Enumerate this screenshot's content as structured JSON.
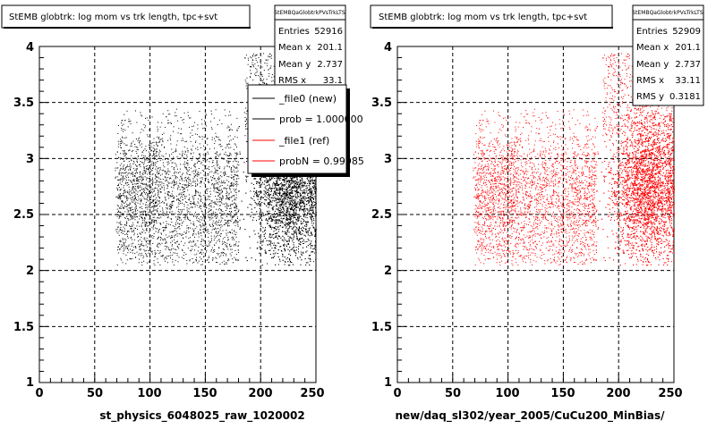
{
  "chart_data": [
    {
      "type": "scatter",
      "title": "StEMB globtrk: log mom vs trk length, tpc+svt",
      "xlabel": "st_physics_6048025_raw_1020002",
      "xlim": [
        0,
        250
      ],
      "ylim": [
        1,
        4
      ],
      "x_ticks": [
        "0",
        "50",
        "100",
        "150",
        "200",
        "250"
      ],
      "y_ticks": [
        "1",
        "1.5",
        "2",
        "2.5",
        "3",
        "3.5",
        "4"
      ],
      "grid": true,
      "color": "#000000",
      "distribution": {
        "diffuse": {
          "x_range": [
            70,
            180
          ],
          "y_range": [
            2.05,
            3.45
          ],
          "dense_center": [
            100,
            2.65
          ]
        },
        "core": {
          "x_range": [
            178,
            250
          ],
          "y_range": [
            2.05,
            3.9
          ],
          "dense_center": [
            225,
            2.75
          ]
        }
      },
      "stats": {
        "name": "StEMBQaGlobtrkPVsTrkLTS",
        "rows": [
          {
            "label": "Entries",
            "value": "52916"
          },
          {
            "label": "Mean x",
            "value": "201.1"
          },
          {
            "label": "Mean y",
            "value": "2.737"
          },
          {
            "label": "RMS x",
            "value": "33.1"
          }
        ]
      },
      "legend": {
        "position": "top-right",
        "entries": [
          {
            "label": "_file0 (new)",
            "color": "#000000"
          },
          {
            "label": "prob = 1.000000",
            "color": "#000000"
          },
          {
            "label": "_file1 (ref)",
            "color": "#ff0000"
          },
          {
            "label": "probN = 0.99985",
            "color": "#ff0000"
          }
        ]
      }
    },
    {
      "type": "scatter",
      "title": "StEMB globtrk: log mom vs trk length, tpc+svt",
      "xlabel": "new/daq_sl302/year_2005/CuCu200_MinBias/",
      "xlim": [
        0,
        250
      ],
      "ylim": [
        1,
        4
      ],
      "x_ticks": [
        "0",
        "50",
        "100",
        "150",
        "200",
        "250"
      ],
      "y_ticks": [
        "1",
        "1.5",
        "2",
        "2.5",
        "3",
        "3.5",
        "4"
      ],
      "grid": true,
      "color": "#ff0000",
      "distribution": {
        "diffuse": {
          "x_range": [
            70,
            180
          ],
          "y_range": [
            2.05,
            3.45
          ],
          "dense_center": [
            100,
            2.65
          ]
        },
        "core": {
          "x_range": [
            178,
            250
          ],
          "y_range": [
            2.05,
            3.9
          ],
          "dense_center": [
            225,
            2.75
          ]
        }
      },
      "stats": {
        "name": "StEMBQaGlobtrkPVsTrkLTS",
        "rows": [
          {
            "label": "Entries",
            "value": "52909"
          },
          {
            "label": "Mean x",
            "value": "201.1"
          },
          {
            "label": "Mean y",
            "value": "2.737"
          },
          {
            "label": "RMS x",
            "value": "33.11"
          },
          {
            "label": "RMS y",
            "value": "0.3181"
          }
        ]
      }
    }
  ]
}
